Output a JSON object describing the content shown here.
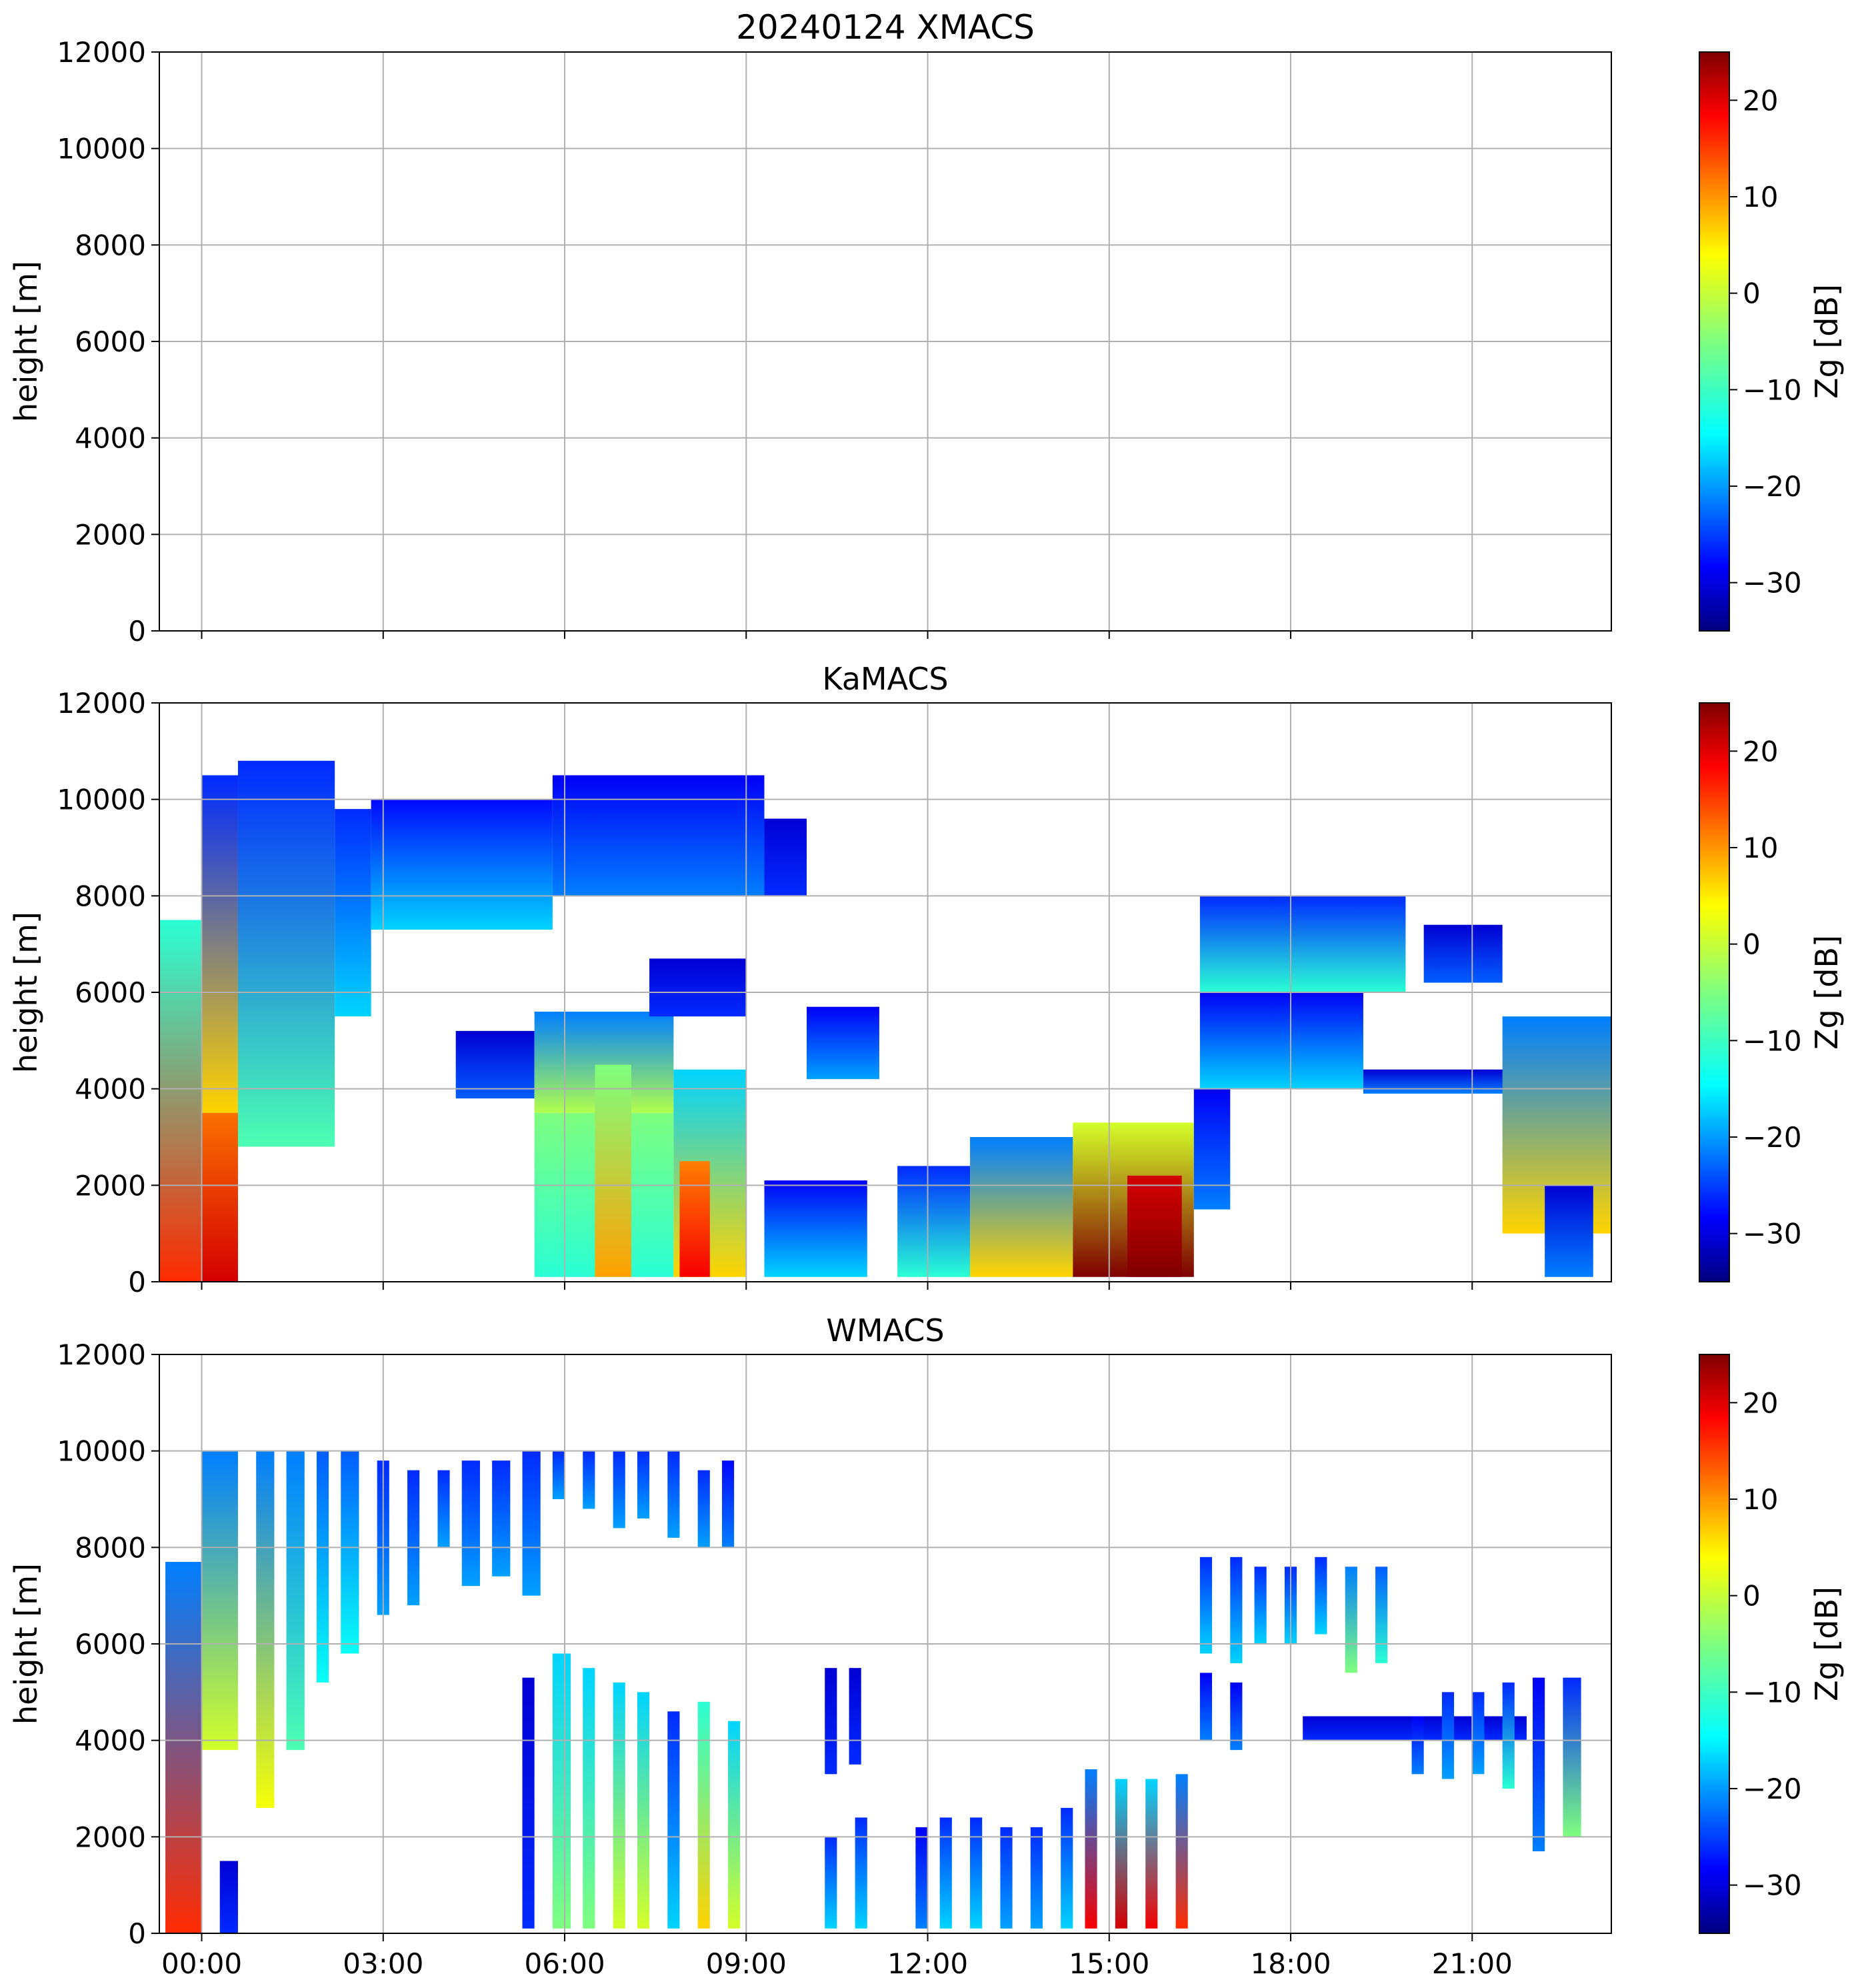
{
  "chart_data": {
    "type": "heatmap",
    "figure_title": "20240124 XMACS",
    "x_ticks": [
      "00:00",
      "03:00",
      "06:00",
      "09:00",
      "12:00",
      "15:00",
      "18:00",
      "21:00"
    ],
    "x_tick_hours": [
      0,
      3,
      6,
      9,
      12,
      15,
      18,
      21
    ],
    "xlim_hours": [
      -0.7,
      23.3
    ],
    "ylim": [
      0,
      12000
    ],
    "y_ticks": [
      0,
      2000,
      4000,
      6000,
      8000,
      10000,
      12000
    ],
    "ylabel": "height [m]",
    "colorbar": {
      "label": "Zg [dB]",
      "range": [
        -35,
        25
      ],
      "ticks": [
        20,
        10,
        0,
        -10,
        -20,
        -30
      ],
      "tick_labels": [
        "20",
        "10",
        "0",
        "−10",
        "−20",
        "−30"
      ]
    },
    "colors": {
      "jet": [
        "#00007f",
        "#0000ff",
        "#007fff",
        "#00ffff",
        "#7fff7f",
        "#ffff00",
        "#ff7f00",
        "#ff0000",
        "#7f0000"
      ],
      "grid": "#b0b0b0",
      "axes": "#000000"
    },
    "grid": true,
    "panels": [
      {
        "id": "xmacs",
        "title": "",
        "regions": []
      },
      {
        "id": "kamacs",
        "title": "KaMACS",
        "regions": [
          {
            "t": [
              -0.7,
              0.0
            ],
            "h": [
              0,
              7500
            ],
            "zb": 15,
            "zt": -10
          },
          {
            "t": [
              0.0,
              0.6
            ],
            "h": [
              0,
              4000
            ],
            "zb": 20,
            "zt": 10
          },
          {
            "t": [
              0.0,
              0.6
            ],
            "h": [
              3500,
              10500
            ],
            "zb": 5,
            "zt": -25
          },
          {
            "t": [
              0.6,
              2.2
            ],
            "h": [
              2800,
              10800
            ],
            "zb": -8,
            "zt": -25
          },
          {
            "t": [
              2.2,
              2.8
            ],
            "h": [
              5500,
              9800
            ],
            "zb": -15,
            "zt": -25
          },
          {
            "t": [
              2.8,
              5.8
            ],
            "h": [
              7300,
              10000
            ],
            "zb": -15,
            "zt": -27
          },
          {
            "t": [
              5.8,
              9.3
            ],
            "h": [
              8000,
              10500
            ],
            "zb": -20,
            "zt": -28
          },
          {
            "t": [
              9.3,
              10.0
            ],
            "h": [
              8000,
              9600
            ],
            "zb": -25,
            "zt": -30
          },
          {
            "t": [
              4.2,
              5.5
            ],
            "h": [
              3800,
              5200
            ],
            "zb": -22,
            "zt": -30
          },
          {
            "t": [
              5.5,
              7.8
            ],
            "h": [
              3500,
              5600
            ],
            "zb": -2,
            "zt": -20
          },
          {
            "t": [
              5.5,
              7.8
            ],
            "h": [
              100,
              3500
            ],
            "zb": -10,
            "zt": -5
          },
          {
            "t": [
              6.5,
              7.1
            ],
            "h": [
              100,
              4500
            ],
            "zb": 8,
            "zt": -5
          },
          {
            "t": [
              7.8,
              9.0
            ],
            "h": [
              100,
              4400
            ],
            "zb": 5,
            "zt": -15
          },
          {
            "t": [
              7.9,
              8.4
            ],
            "h": [
              100,
              2500
            ],
            "zb": 18,
            "zt": 10
          },
          {
            "t": [
              7.4,
              9.0
            ],
            "h": [
              5500,
              6700
            ],
            "zb": -25,
            "zt": -30
          },
          {
            "t": [
              10.0,
              11.2
            ],
            "h": [
              4200,
              5700
            ],
            "zb": -18,
            "zt": -28
          },
          {
            "t": [
              9.3,
              11.0
            ],
            "h": [
              100,
              2100
            ],
            "zb": -15,
            "zt": -28
          },
          {
            "t": [
              11.5,
              12.7
            ],
            "h": [
              100,
              2400
            ],
            "zb": -10,
            "zt": -25
          },
          {
            "t": [
              12.7,
              14.4
            ],
            "h": [
              100,
              3000
            ],
            "zb": 5,
            "zt": -20
          },
          {
            "t": [
              14.4,
              16.4
            ],
            "h": [
              100,
              3300
            ],
            "zb": 25,
            "zt": 0
          },
          {
            "t": [
              15.3,
              16.2
            ],
            "h": [
              100,
              2200
            ],
            "zb": 25,
            "zt": 20
          },
          {
            "t": [
              16.4,
              17.0
            ],
            "h": [
              1500,
              4000
            ],
            "zb": -20,
            "zt": -28
          },
          {
            "t": [
              16.5,
              19.9
            ],
            "h": [
              6000,
              8000
            ],
            "zb": -10,
            "zt": -25
          },
          {
            "t": [
              16.5,
              19.2
            ],
            "h": [
              4000,
              6000
            ],
            "zb": -15,
            "zt": -28
          },
          {
            "t": [
              19.2,
              21.8
            ],
            "h": [
              3900,
              4400
            ],
            "zb": -20,
            "zt": -30
          },
          {
            "t": [
              20.2,
              21.5
            ],
            "h": [
              6200,
              7400
            ],
            "zb": -22,
            "zt": -30
          },
          {
            "t": [
              21.5,
              23.3
            ],
            "h": [
              1000,
              5500
            ],
            "zb": 5,
            "zt": -20
          },
          {
            "t": [
              22.2,
              23.0
            ],
            "h": [
              100,
              2000
            ],
            "zb": -20,
            "zt": -30
          }
        ]
      },
      {
        "id": "wmacs",
        "title": "WMACS",
        "regions": [
          {
            "t": [
              -0.6,
              0.0
            ],
            "h": [
              0,
              7700
            ],
            "zb": 15,
            "zt": -20
          },
          {
            "t": [
              0.0,
              0.6
            ],
            "h": [
              3800,
              10000
            ],
            "zb": 0,
            "zt": -20
          },
          {
            "t": [
              0.3,
              0.6
            ],
            "h": [
              0,
              1500
            ],
            "zb": -25,
            "zt": -30
          },
          {
            "t": [
              0.9,
              1.2
            ],
            "h": [
              2600,
              10000
            ],
            "zb": 2,
            "zt": -20
          },
          {
            "t": [
              1.4,
              1.7
            ],
            "h": [
              3800,
              10000
            ],
            "zb": -8,
            "zt": -20
          },
          {
            "t": [
              1.9,
              2.1
            ],
            "h": [
              5200,
              10000
            ],
            "zb": -12,
            "zt": -22
          },
          {
            "t": [
              2.3,
              2.6
            ],
            "h": [
              5800,
              10000
            ],
            "zb": -12,
            "zt": -22
          },
          {
            "t": [
              2.9,
              3.1
            ],
            "h": [
              6600,
              9800
            ],
            "zb": -18,
            "zt": -25
          },
          {
            "t": [
              3.4,
              3.6
            ],
            "h": [
              6800,
              9600
            ],
            "zb": -18,
            "zt": -25
          },
          {
            "t": [
              3.9,
              4.1
            ],
            "h": [
              8000,
              9600
            ],
            "zb": -18,
            "zt": -25
          },
          {
            "t": [
              4.3,
              4.6
            ],
            "h": [
              7200,
              9800
            ],
            "zb": -18,
            "zt": -25
          },
          {
            "t": [
              4.8,
              5.1
            ],
            "h": [
              7400,
              9800
            ],
            "zb": -18,
            "zt": -25
          },
          {
            "t": [
              5.3,
              5.6
            ],
            "h": [
              7000,
              10000
            ],
            "zb": -18,
            "zt": -25
          },
          {
            "t": [
              5.8,
              6.0
            ],
            "h": [
              9000,
              10000
            ],
            "zb": -18,
            "zt": -25
          },
          {
            "t": [
              6.3,
              6.5
            ],
            "h": [
              8800,
              10000
            ],
            "zb": -18,
            "zt": -25
          },
          {
            "t": [
              6.8,
              7.0
            ],
            "h": [
              8400,
              10000
            ],
            "zb": -18,
            "zt": -25
          },
          {
            "t": [
              7.2,
              7.4
            ],
            "h": [
              8600,
              10000
            ],
            "zb": -18,
            "zt": -25
          },
          {
            "t": [
              7.7,
              7.9
            ],
            "h": [
              8200,
              10000
            ],
            "zb": -18,
            "zt": -25
          },
          {
            "t": [
              8.2,
              8.4
            ],
            "h": [
              8000,
              9600
            ],
            "zb": -18,
            "zt": -25
          },
          {
            "t": [
              8.6,
              8.8
            ],
            "h": [
              8000,
              9800
            ],
            "zb": -20,
            "zt": -27
          },
          {
            "t": [
              5.3,
              5.5
            ],
            "h": [
              100,
              5300
            ],
            "zb": -25,
            "zt": -30
          },
          {
            "t": [
              5.8,
              6.1
            ],
            "h": [
              100,
              5800
            ],
            "zb": -5,
            "zt": -15
          },
          {
            "t": [
              6.3,
              6.5
            ],
            "h": [
              100,
              5500
            ],
            "zb": -5,
            "zt": -15
          },
          {
            "t": [
              6.8,
              7.0
            ],
            "h": [
              100,
              5200
            ],
            "zb": 0,
            "zt": -15
          },
          {
            "t": [
              7.2,
              7.4
            ],
            "h": [
              100,
              5000
            ],
            "zb": 0,
            "zt": -15
          },
          {
            "t": [
              7.7,
              7.9
            ],
            "h": [
              100,
              4600
            ],
            "zb": -15,
            "zt": -25
          },
          {
            "t": [
              8.2,
              8.4
            ],
            "h": [
              100,
              4800
            ],
            "zb": 5,
            "zt": -10
          },
          {
            "t": [
              8.7,
              8.9
            ],
            "h": [
              100,
              4400
            ],
            "zb": 0,
            "zt": -15
          },
          {
            "t": [
              10.3,
              10.5
            ],
            "h": [
              3300,
              5500
            ],
            "zb": -25,
            "zt": -30
          },
          {
            "t": [
              10.7,
              10.9
            ],
            "h": [
              3500,
              5500
            ],
            "zb": -25,
            "zt": -30
          },
          {
            "t": [
              10.3,
              10.5
            ],
            "h": [
              100,
              2000
            ],
            "zb": -15,
            "zt": -25
          },
          {
            "t": [
              10.8,
              11.0
            ],
            "h": [
              100,
              2400
            ],
            "zb": -15,
            "zt": -25
          },
          {
            "t": [
              11.8,
              12.0
            ],
            "h": [
              100,
              2200
            ],
            "zb": -20,
            "zt": -28
          },
          {
            "t": [
              12.2,
              12.4
            ],
            "h": [
              100,
              2400
            ],
            "zb": -15,
            "zt": -25
          },
          {
            "t": [
              12.7,
              12.9
            ],
            "h": [
              100,
              2400
            ],
            "zb": -15,
            "zt": -25
          },
          {
            "t": [
              13.2,
              13.4
            ],
            "h": [
              100,
              2200
            ],
            "zb": -18,
            "zt": -25
          },
          {
            "t": [
              13.7,
              13.9
            ],
            "h": [
              100,
              2200
            ],
            "zb": -18,
            "zt": -25
          },
          {
            "t": [
              14.2,
              14.4
            ],
            "h": [
              100,
              2600
            ],
            "zb": -15,
            "zt": -25
          },
          {
            "t": [
              14.6,
              14.8
            ],
            "h": [
              100,
              3400
            ],
            "zb": 18,
            "zt": -20
          },
          {
            "t": [
              15.1,
              15.3
            ],
            "h": [
              100,
              3200
            ],
            "zb": 20,
            "zt": -15
          },
          {
            "t": [
              15.6,
              15.8
            ],
            "h": [
              100,
              3200
            ],
            "zb": 18,
            "zt": -15
          },
          {
            "t": [
              16.1,
              16.3
            ],
            "h": [
              100,
              3300
            ],
            "zb": 15,
            "zt": -20
          },
          {
            "t": [
              16.5,
              16.7
            ],
            "h": [
              5800,
              7800
            ],
            "zb": -15,
            "zt": -25
          },
          {
            "t": [
              16.5,
              16.7
            ],
            "h": [
              4000,
              5400
            ],
            "zb": -20,
            "zt": -28
          },
          {
            "t": [
              17.0,
              17.2
            ],
            "h": [
              5600,
              7800
            ],
            "zb": -15,
            "zt": -25
          },
          {
            "t": [
              17.0,
              17.2
            ],
            "h": [
              3800,
              5200
            ],
            "zb": -20,
            "zt": -28
          },
          {
            "t": [
              17.4,
              17.6
            ],
            "h": [
              6000,
              7600
            ],
            "zb": -15,
            "zt": -25
          },
          {
            "t": [
              17.9,
              18.1
            ],
            "h": [
              6000,
              7600
            ],
            "zb": -15,
            "zt": -25
          },
          {
            "t": [
              18.4,
              18.6
            ],
            "h": [
              6200,
              7800
            ],
            "zb": -15,
            "zt": -25
          },
          {
            "t": [
              18.9,
              19.1
            ],
            "h": [
              5400,
              7600
            ],
            "zb": -5,
            "zt": -20
          },
          {
            "t": [
              19.4,
              19.6
            ],
            "h": [
              5600,
              7600
            ],
            "zb": -10,
            "zt": -22
          },
          {
            "t": [
              18.2,
              21.9
            ],
            "h": [
              4000,
              4500
            ],
            "zb": -25,
            "zt": -30
          },
          {
            "t": [
              20.0,
              20.2
            ],
            "h": [
              3300,
              4500
            ],
            "zb": -20,
            "zt": -28
          },
          {
            "t": [
              20.5,
              20.7
            ],
            "h": [
              3200,
              5000
            ],
            "zb": -18,
            "zt": -25
          },
          {
            "t": [
              21.0,
              21.2
            ],
            "h": [
              3300,
              5000
            ],
            "zb": -18,
            "zt": -25
          },
          {
            "t": [
              21.5,
              21.7
            ],
            "h": [
              3000,
              5200
            ],
            "zb": -10,
            "zt": -25
          },
          {
            "t": [
              22.0,
              22.2
            ],
            "h": [
              1700,
              5300
            ],
            "zb": -20,
            "zt": -28
          },
          {
            "t": [
              22.5,
              22.8
            ],
            "h": [
              2000,
              5300
            ],
            "zb": -5,
            "zt": -25
          }
        ]
      }
    ]
  }
}
